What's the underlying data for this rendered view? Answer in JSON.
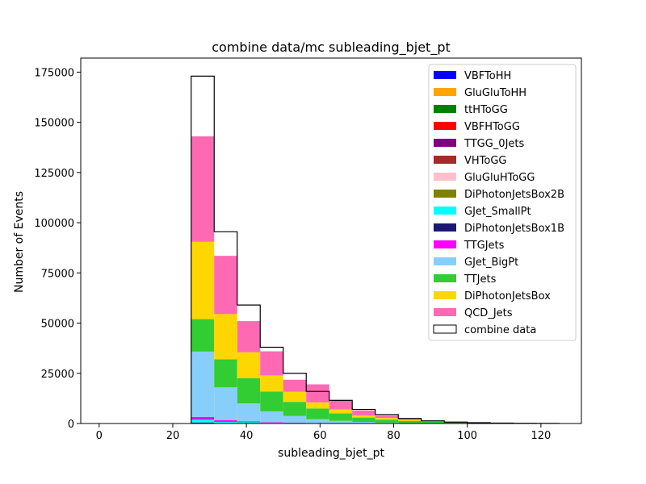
{
  "chart_data": {
    "type": "bar",
    "stacked": true,
    "title": "combine data/mc subleading_bjet_pt",
    "xlabel": "subleading_bjet_pt",
    "ylabel": "Number of Events",
    "xlim": [
      -5,
      131
    ],
    "ylim": [
      0,
      182000
    ],
    "x_ticks": [
      "0",
      "20",
      "40",
      "60",
      "80",
      "100",
      "120"
    ],
    "y_ticks": [
      "0",
      "25000",
      "50000",
      "75000",
      "100000",
      "125000",
      "150000",
      "175000"
    ],
    "legend_position": "upper right",
    "bin_edges": [
      25,
      31.25,
      37.5,
      43.75,
      50,
      56.25,
      62.5,
      68.75,
      75,
      81.25,
      87.5,
      93.75,
      100,
      106.25,
      112.5,
      118.75,
      125
    ],
    "series": [
      {
        "name": "VBFToHH",
        "color": "#0000ff",
        "values": [
          0,
          0,
          0,
          0,
          0,
          0,
          0,
          0,
          0,
          0,
          0,
          0,
          0,
          0,
          0,
          0
        ]
      },
      {
        "name": "GluGluToHH",
        "color": "#ffa500",
        "values": [
          0,
          0,
          0,
          0,
          0,
          0,
          0,
          0,
          0,
          0,
          0,
          0,
          0,
          0,
          0,
          0
        ]
      },
      {
        "name": "ttHToGG",
        "color": "#008000",
        "values": [
          0,
          0,
          0,
          0,
          0,
          0,
          0,
          0,
          0,
          0,
          0,
          0,
          0,
          0,
          0,
          0
        ]
      },
      {
        "name": "VBFHToGG",
        "color": "#ff0000",
        "values": [
          0,
          0,
          0,
          0,
          0,
          0,
          0,
          0,
          0,
          0,
          0,
          0,
          0,
          0,
          0,
          0
        ]
      },
      {
        "name": "TTGG_0Jets",
        "color": "#800080",
        "values": [
          500,
          300,
          200,
          100,
          50,
          30,
          20,
          10,
          5,
          0,
          0,
          0,
          0,
          0,
          0,
          0
        ]
      },
      {
        "name": "VHToGG",
        "color": "#a52a2a",
        "values": [
          0,
          0,
          0,
          0,
          0,
          0,
          0,
          0,
          0,
          0,
          0,
          0,
          0,
          0,
          0,
          0
        ]
      },
      {
        "name": "GluGluHToGG",
        "color": "#ffc0cb",
        "values": [
          0,
          0,
          0,
          0,
          0,
          0,
          0,
          0,
          0,
          0,
          0,
          0,
          0,
          0,
          0,
          0
        ]
      },
      {
        "name": "DiPhotonJetsBox2B",
        "color": "#808000",
        "values": [
          0,
          0,
          0,
          0,
          0,
          0,
          0,
          0,
          0,
          0,
          0,
          0,
          0,
          0,
          0,
          0
        ]
      },
      {
        "name": "GJet_SmallPt",
        "color": "#00ffff",
        "values": [
          1500,
          700,
          500,
          300,
          200,
          100,
          50,
          30,
          20,
          10,
          0,
          0,
          0,
          0,
          0,
          0
        ]
      },
      {
        "name": "DiPhotonJetsBox1B",
        "color": "#191970",
        "values": [
          300,
          200,
          100,
          50,
          30,
          20,
          10,
          5,
          0,
          0,
          0,
          0,
          0,
          0,
          0,
          0
        ]
      },
      {
        "name": "TTGJets",
        "color": "#ff00ff",
        "values": [
          1000,
          500,
          300,
          200,
          100,
          50,
          30,
          20,
          10,
          0,
          0,
          0,
          0,
          0,
          0,
          0
        ]
      },
      {
        "name": "GJet_BigPt",
        "color": "#87cefa",
        "values": [
          32500,
          16300,
          8900,
          5400,
          3400,
          1900,
          1200,
          700,
          400,
          200,
          100,
          50,
          20,
          10,
          0,
          0
        ]
      },
      {
        "name": "TTJets",
        "color": "#32cd32",
        "values": [
          16200,
          14000,
          12500,
          9900,
          7000,
          5400,
          3700,
          2200,
          1500,
          1000,
          700,
          400,
          200,
          100,
          50,
          0
        ]
      },
      {
        "name": "DiPhotonJetsBox",
        "color": "#ffd700",
        "values": [
          38500,
          22500,
          13000,
          8000,
          5000,
          3000,
          2000,
          1000,
          800,
          600,
          300,
          200,
          100,
          50,
          0,
          0
        ]
      },
      {
        "name": "QCD_Jets",
        "color": "#ff69b4",
        "values": [
          52500,
          29000,
          15500,
          12000,
          6000,
          9000,
          4800,
          2500,
          1300,
          400,
          200,
          100,
          0,
          0,
          0,
          0
        ]
      }
    ],
    "data": {
      "name": "combine data",
      "values": [
        173000,
        95500,
        59000,
        38000,
        25000,
        16000,
        11500,
        7000,
        4500,
        2500,
        1300,
        700,
        400,
        200,
        100,
        50
      ]
    }
  }
}
